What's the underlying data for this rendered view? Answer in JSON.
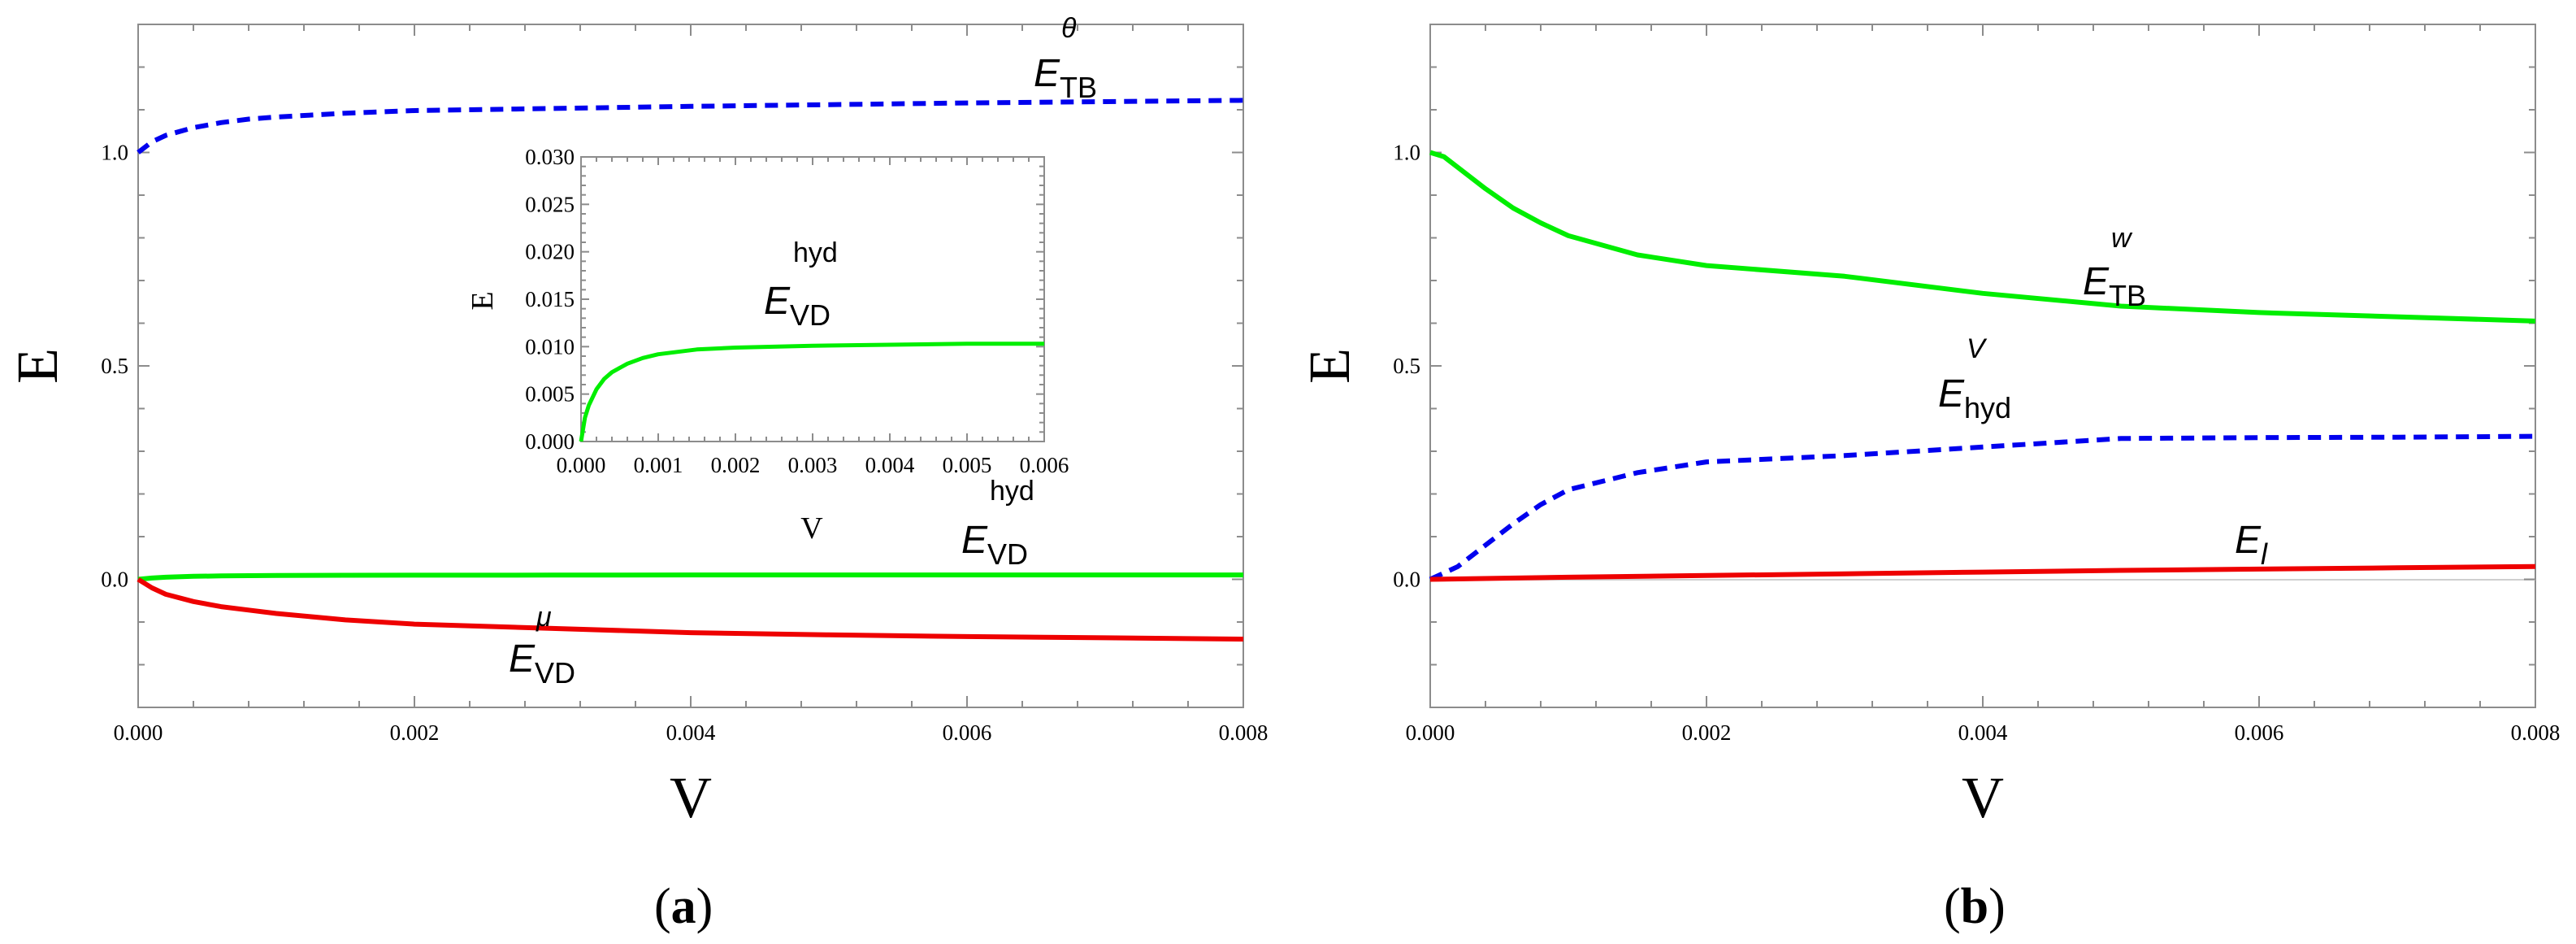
{
  "chart_data": [
    {
      "type": "line",
      "panel_label": "(a)",
      "panel_letter": "a",
      "xlabel": "V",
      "ylabel": "E",
      "xlim": [
        0,
        0.008
      ],
      "ylim": [
        -0.3,
        1.3
      ],
      "x_ticks": [
        "0.000",
        "0.002",
        "0.004",
        "0.006",
        "0.008"
      ],
      "y_ticks": [
        "0.0",
        "0.5",
        "1.0"
      ],
      "series": [
        {
          "name": "E_TB^θ",
          "base": "E",
          "sub": "TB",
          "sup": "θ",
          "color": "#0000ee",
          "style": "dashed",
          "x": [
            0,
            0.0001,
            0.0002,
            0.0004,
            0.0006,
            0.0008,
            0.001,
            0.0015,
            0.002,
            0.003,
            0.004,
            0.005,
            0.006,
            0.007,
            0.008
          ],
          "y": [
            1.0,
            1.025,
            1.04,
            1.058,
            1.07,
            1.078,
            1.083,
            1.092,
            1.098,
            1.103,
            1.108,
            1.112,
            1.116,
            1.119,
            1.122
          ]
        },
        {
          "name": "E_VD^hyd",
          "base": "E",
          "sub": "VD",
          "sup": "hyd",
          "color": "#00ee00",
          "style": "solid",
          "x": [
            0,
            0.0001,
            0.0002,
            0.0004,
            0.0006,
            0.0008,
            0.001,
            0.0015,
            0.002,
            0.003,
            0.004,
            0.005,
            0.006,
            0.007,
            0.008
          ],
          "y": [
            0.0,
            0.003,
            0.005,
            0.007,
            0.008,
            0.0085,
            0.009,
            0.0095,
            0.0098,
            0.01,
            0.0102,
            0.0103,
            0.0103,
            0.0103,
            0.0103
          ]
        },
        {
          "name": "E_VD^μ",
          "base": "E",
          "sub": "VD",
          "sup": "μ",
          "color": "#ee0000",
          "style": "solid",
          "x": [
            0,
            0.0001,
            0.0002,
            0.0004,
            0.0006,
            0.0008,
            0.001,
            0.0015,
            0.002,
            0.003,
            0.004,
            0.005,
            0.006,
            0.007,
            0.008
          ],
          "y": [
            0.0,
            -0.02,
            -0.035,
            -0.052,
            -0.064,
            -0.072,
            -0.08,
            -0.095,
            -0.105,
            -0.115,
            -0.125,
            -0.13,
            -0.134,
            -0.137,
            -0.14
          ]
        }
      ],
      "inset": {
        "type": "line",
        "xlabel": "V",
        "ylabel": "E",
        "xlim": [
          0,
          0.006
        ],
        "ylim": [
          0,
          0.03
        ],
        "x_ticks": [
          "0.000",
          "0.001",
          "0.002",
          "0.003",
          "0.004",
          "0.005",
          "0.006"
        ],
        "y_ticks": [
          "0.000",
          "0.005",
          "0.010",
          "0.015",
          "0.020",
          "0.025",
          "0.030"
        ],
        "series": [
          {
            "name": "E_VD^hyd",
            "base": "E",
            "sub": "VD",
            "sup": "hyd",
            "color": "#00ee00",
            "style": "solid",
            "x": [
              0,
              5e-05,
              0.0001,
              0.0002,
              0.0003,
              0.0004,
              0.0006,
              0.0008,
              0.001,
              0.0015,
              0.002,
              0.003,
              0.004,
              0.005,
              0.006
            ],
            "y": [
              0.0,
              0.0025,
              0.0038,
              0.0055,
              0.0066,
              0.0073,
              0.0082,
              0.0088,
              0.0092,
              0.0097,
              0.0099,
              0.0101,
              0.0102,
              0.0103,
              0.0103
            ]
          }
        ]
      }
    },
    {
      "type": "line",
      "panel_label": "(b)",
      "panel_letter": "b",
      "xlabel": "V",
      "ylabel": "E",
      "xlim": [
        0,
        0.008
      ],
      "ylim": [
        -0.3,
        1.3
      ],
      "x_ticks": [
        "0.000",
        "0.002",
        "0.004",
        "0.006",
        "0.008"
      ],
      "y_ticks": [
        "0.0",
        "0.5",
        "1.0"
      ],
      "series": [
        {
          "name": "E_TB^w",
          "base": "E",
          "sub": "TB",
          "sup": "w",
          "color": "#00ee00",
          "style": "solid",
          "x": [
            0,
            0.0001,
            0.0002,
            0.0004,
            0.0006,
            0.0008,
            0.001,
            0.0015,
            0.002,
            0.003,
            0.004,
            0.005,
            0.006,
            0.007,
            0.008
          ],
          "y": [
            1.0,
            0.99,
            0.965,
            0.915,
            0.87,
            0.835,
            0.805,
            0.76,
            0.735,
            0.71,
            0.67,
            0.64,
            0.625,
            0.615,
            0.605
          ]
        },
        {
          "name": "E_hyd^V",
          "base": "E",
          "sub": "hyd",
          "sup": "V",
          "color": "#0000ee",
          "style": "dashed",
          "x": [
            0,
            0.0002,
            0.0004,
            0.0006,
            0.0008,
            0.001,
            0.0015,
            0.002,
            0.003,
            0.004,
            0.005,
            0.006,
            0.007,
            0.008
          ],
          "y": [
            0.0,
            0.03,
            0.08,
            0.13,
            0.175,
            0.21,
            0.25,
            0.275,
            0.29,
            0.31,
            0.33,
            0.332,
            0.333,
            0.335
          ]
        },
        {
          "name": "E_l",
          "base": "E",
          "sub": "l",
          "sup": "",
          "color": "#ee0000",
          "style": "solid",
          "x": [
            0,
            0.001,
            0.002,
            0.003,
            0.004,
            0.005,
            0.006,
            0.007,
            0.008
          ],
          "y": [
            0.0,
            0.005,
            0.009,
            0.013,
            0.017,
            0.021,
            0.024,
            0.027,
            0.03
          ]
        }
      ]
    }
  ]
}
